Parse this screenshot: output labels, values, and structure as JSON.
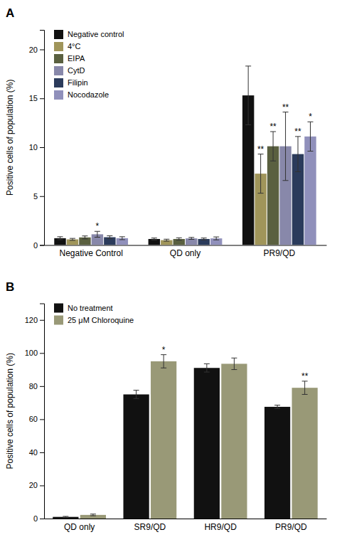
{
  "chart_data": [
    {
      "type": "bar",
      "title": "A",
      "categories": [
        "Negative Control",
        "QD only",
        "PR9/QD"
      ],
      "series": [
        {
          "name": "Negative control",
          "color": "#111111",
          "values": [
            0.7,
            0.62,
            15.3
          ],
          "errors": [
            0.15,
            0.1,
            3.0
          ]
        },
        {
          "name": "4°C",
          "color": "#A0955A",
          "values": [
            0.58,
            0.5,
            7.3
          ],
          "errors": [
            0.1,
            0.1,
            2.0
          ]
        },
        {
          "name": "EIPA",
          "color": "#5A6040",
          "values": [
            0.78,
            0.62,
            10.1
          ],
          "errors": [
            0.15,
            0.12,
            1.5
          ]
        },
        {
          "name": "CytD",
          "color": "#8888AA",
          "values": [
            1.1,
            0.68,
            10.1
          ],
          "errors": [
            0.3,
            0.1,
            3.5
          ]
        },
        {
          "name": "Filipin",
          "color": "#2B3B5B",
          "values": [
            0.8,
            0.62,
            9.3
          ],
          "errors": [
            0.15,
            0.1,
            1.8
          ]
        },
        {
          "name": "Nocodazole",
          "color": "#9090BB",
          "values": [
            0.7,
            0.68,
            11.1
          ],
          "errors": [
            0.15,
            0.15,
            1.5
          ]
        }
      ],
      "annotations": [
        {
          "category": "Negative Control",
          "series": "CytD",
          "text": "*"
        },
        {
          "category": "PR9/QD",
          "series": "4°C",
          "text": "**"
        },
        {
          "category": "PR9/QD",
          "series": "EIPA",
          "text": "**"
        },
        {
          "category": "PR9/QD",
          "series": "CytD",
          "text": "**"
        },
        {
          "category": "PR9/QD",
          "series": "Filipin",
          "text": "**"
        },
        {
          "category": "PR9/QD",
          "series": "Nocodazole",
          "text": "*"
        }
      ],
      "ylabel": "Positive cells of population (%)",
      "ylim": [
        0,
        22
      ],
      "yticks": [
        0,
        5,
        10,
        15,
        20
      ],
      "legend": "upper left",
      "grid": false
    },
    {
      "type": "bar",
      "title": "B",
      "categories": [
        "QD only",
        "SR9/QD",
        "HR9/QD",
        "PR9/QD"
      ],
      "series": [
        {
          "name": "No treatment",
          "color": "#111111",
          "values": [
            1.0,
            75.0,
            91.0,
            67.5
          ],
          "errors": [
            0.3,
            2.5,
            2.5,
            1.0
          ]
        },
        {
          "name": "25 μM Chloroquine",
          "color": "#999977",
          "values": [
            2.2,
            95.0,
            93.5,
            79.0
          ],
          "errors": [
            0.5,
            4.0,
            3.5,
            4.0
          ]
        }
      ],
      "annotations": [
        {
          "category": "SR9/QD",
          "series": "25 μM Chloroquine",
          "text": "*"
        },
        {
          "category": "PR9/QD",
          "series": "25 μM Chloroquine",
          "text": "**"
        }
      ],
      "ylabel": "Positive cells of population (%)",
      "ylim": [
        0,
        130
      ],
      "yticks": [
        0,
        20,
        40,
        60,
        80,
        100,
        120
      ],
      "legend": "upper left",
      "grid": false
    }
  ]
}
